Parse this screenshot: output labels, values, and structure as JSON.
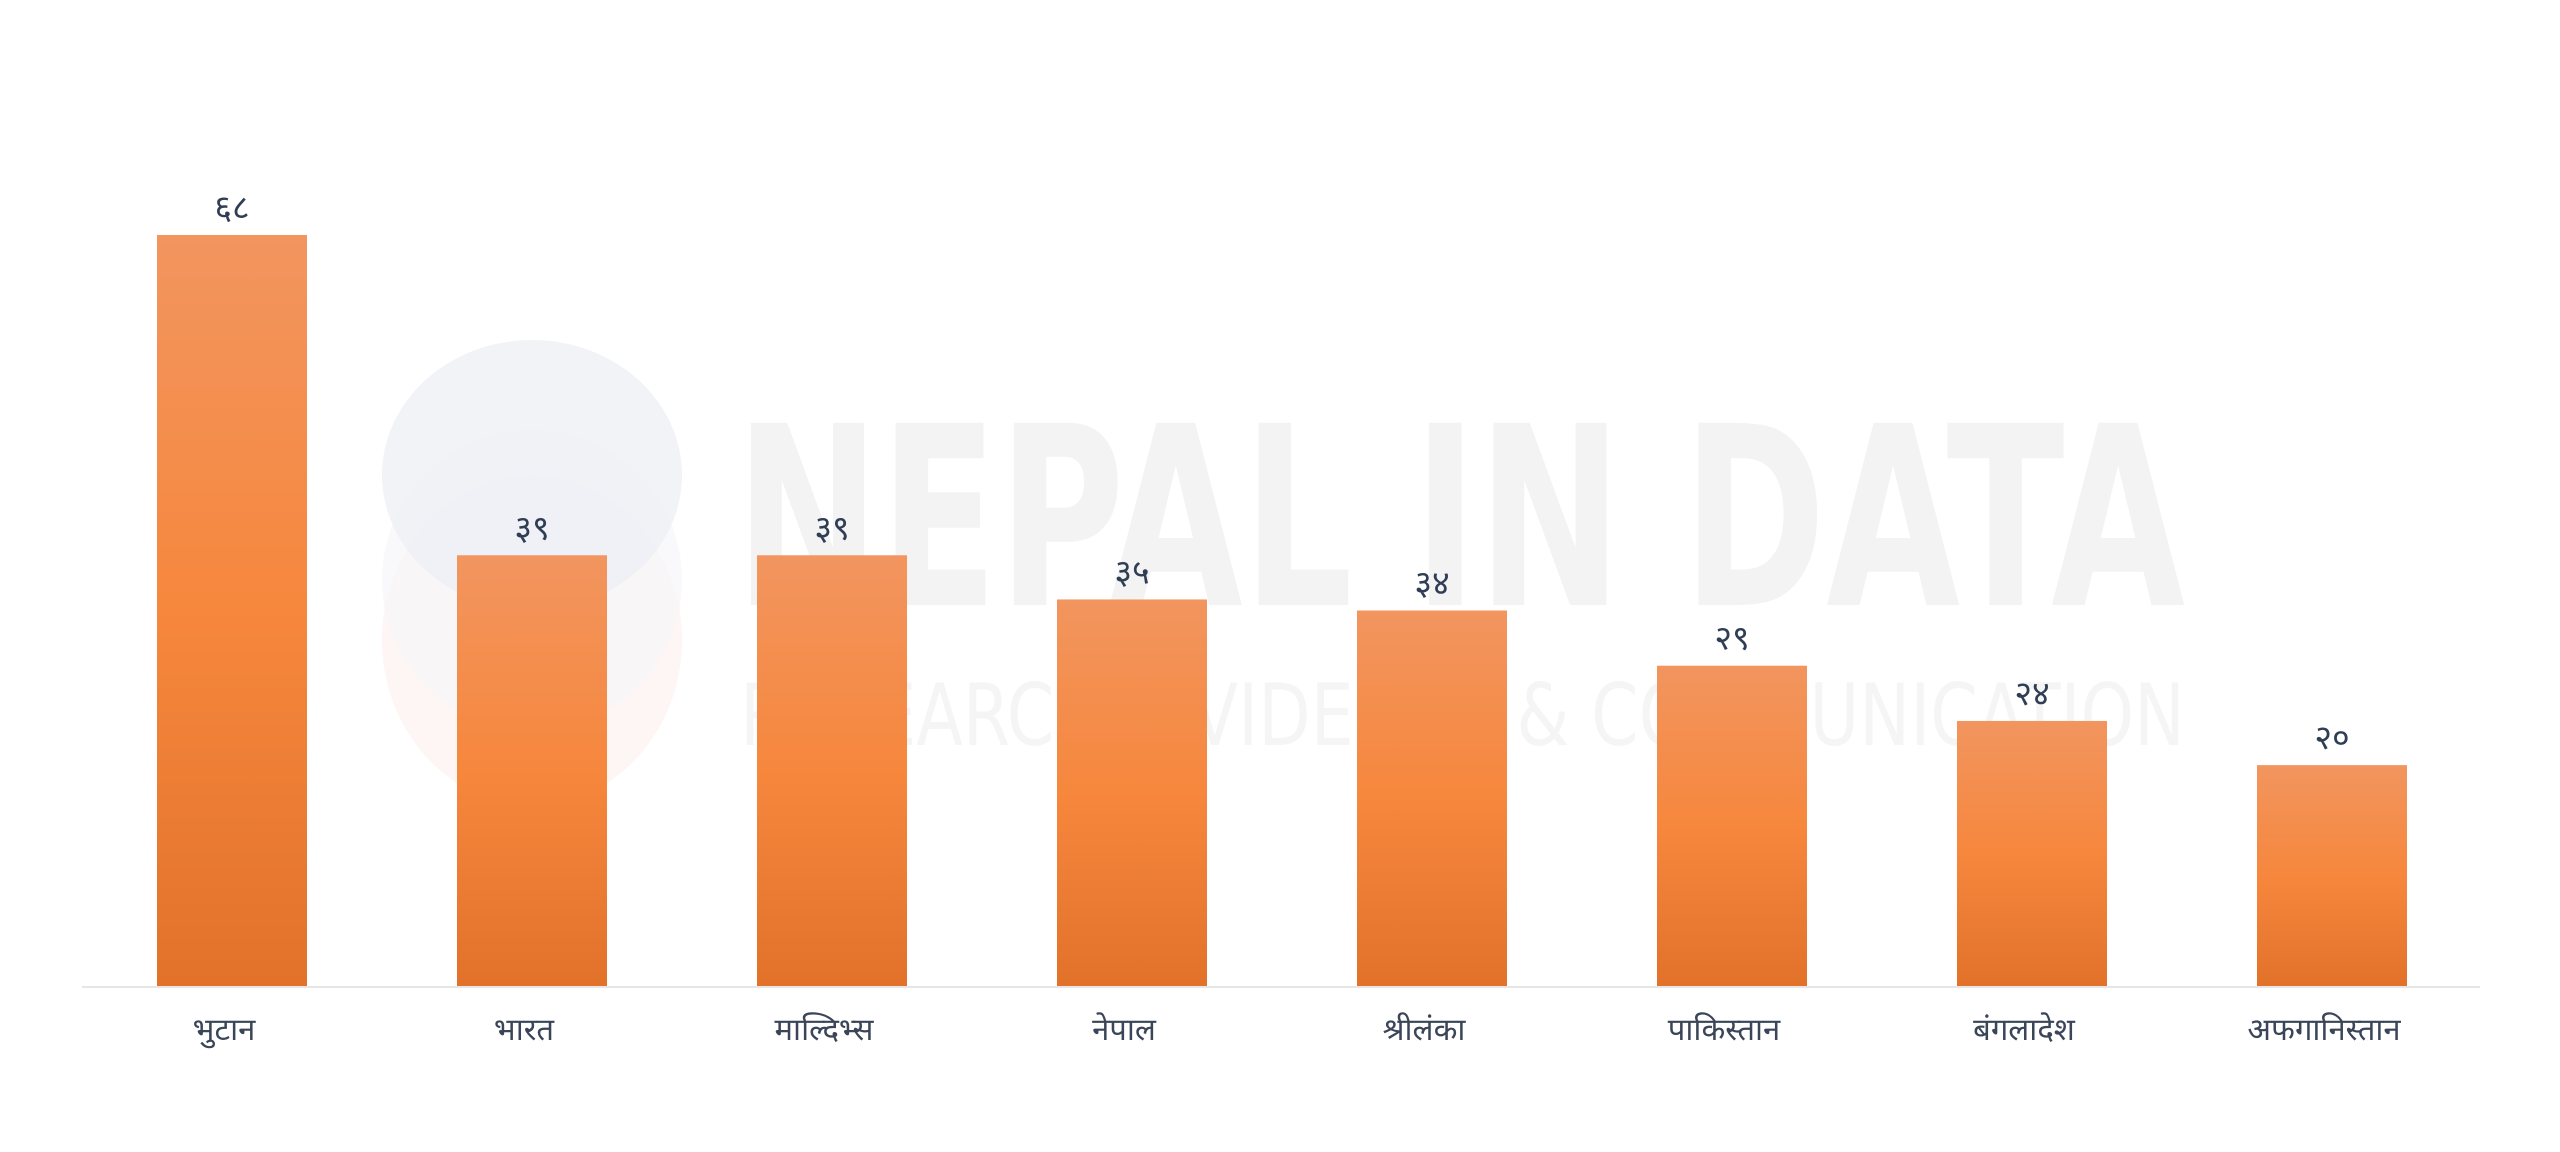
{
  "chart_data": {
    "type": "bar",
    "categories": [
      "भुटान",
      "भारत",
      "माल्दिभ्स",
      "नेपाल",
      "श्रीलंका",
      "पाकिस्तान",
      "बंगलादेश",
      "अफगानिस्तान"
    ],
    "values": [
      68,
      39,
      39,
      35,
      34,
      29,
      24,
      20
    ],
    "value_labels": [
      "६८",
      "३९",
      "३९",
      "३५",
      "३४",
      "२९",
      "२४",
      "२०"
    ],
    "title": "",
    "xlabel": "",
    "ylabel": "",
    "ylim": [
      0,
      68
    ],
    "grid": false,
    "legend": "none"
  },
  "colors": {
    "bar_top": "#f2955f",
    "bar_mid": "#f6873d",
    "bar_bottom": "#e2722a",
    "axis": "#e6e6e6",
    "value_text": "#2f3e55",
    "category_text": "#3b4558"
  },
  "watermark": {
    "title": "NEPAL IN DATA",
    "subtitle": "RESEARCH, EVIDENCE & COMMUNICATION"
  }
}
